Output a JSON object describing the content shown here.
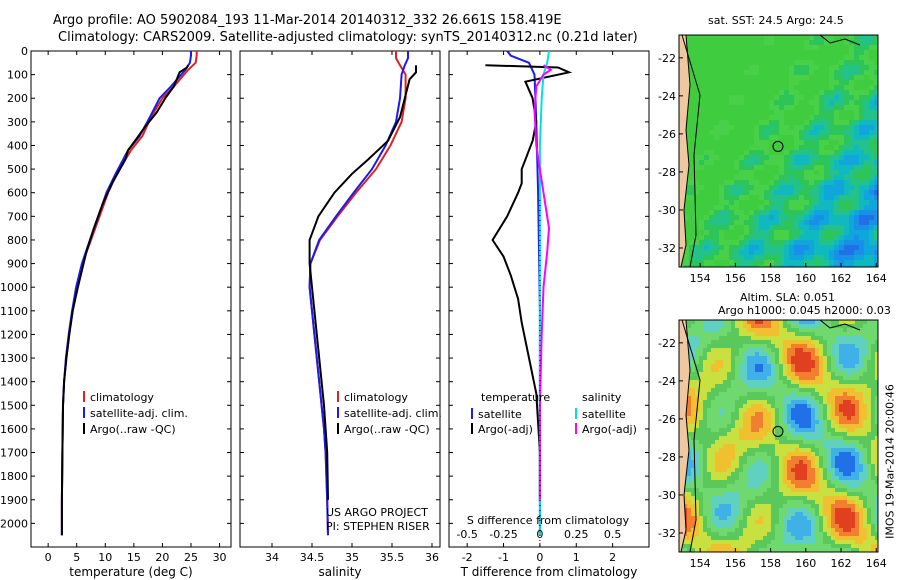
{
  "header": {
    "line1": "Argo profile: AO 5902084_193 11-Mar-2014 20140312_332 26.661S 158.419E",
    "line2": "Climatology: CARS2009. Satellite-adjusted climatology: synTS_20140312.nc (0.21d later)"
  },
  "colors": {
    "clim": "#e02020",
    "sat": "#1b1bf0",
    "argo": "#000000",
    "sal_sat": "#00e0e0",
    "sal_argo": "#ff00ff"
  },
  "chart_data": [
    {
      "type": "line",
      "id": "temperature-profile",
      "xlabel": "temperature (deg C)",
      "ylabel": "",
      "xlim": [
        -3,
        32
      ],
      "ylim": [
        2100,
        0
      ],
      "xticks": [
        0,
        5,
        10,
        15,
        20,
        25,
        30
      ],
      "yticks": [
        0,
        100,
        200,
        300,
        400,
        500,
        600,
        700,
        800,
        900,
        1000,
        1100,
        1200,
        1300,
        1400,
        1500,
        1600,
        1700,
        1800,
        1900,
        2000
      ],
      "series": [
        {
          "name": "climatology",
          "color": "#e02020",
          "x": [
            26,
            26,
            25.8,
            24.5,
            22,
            20,
            18,
            16.5,
            14.5,
            12,
            10.5,
            9,
            7.5,
            6,
            5,
            4.3,
            3.7,
            3.2,
            2.8,
            2.6,
            2.5,
            2.4,
            2.4
          ],
          "y": [
            0,
            20,
            50,
            80,
            150,
            200,
            280,
            360,
            420,
            520,
            600,
            700,
            800,
            900,
            1000,
            1100,
            1200,
            1300,
            1400,
            1500,
            1700,
            1900,
            2050
          ]
        },
        {
          "name": "satellite-adj. clim.",
          "color": "#1b1bf0",
          "x": [
            25,
            25,
            24.8,
            24,
            21.5,
            19.5,
            17.8,
            16,
            14,
            11.8,
            10.2,
            8.8,
            7.3,
            5.9,
            4.9,
            4.2,
            3.6,
            3.1,
            2.8,
            2.6,
            2.5,
            2.4,
            2.4
          ],
          "y": [
            0,
            20,
            50,
            80,
            150,
            200,
            280,
            360,
            420,
            520,
            600,
            700,
            800,
            900,
            1000,
            1100,
            1200,
            1300,
            1400,
            1500,
            1700,
            1900,
            2050
          ]
        },
        {
          "name": "Argo(..raw -QC)",
          "color": "#000000",
          "x": [
            24.5,
            24.3,
            23,
            22,
            20.5,
            19,
            17,
            15.2,
            14,
            13.5,
            11.2,
            9.5,
            8,
            6.7,
            5.2,
            4.3,
            3.7,
            3.2,
            2.8,
            2.6,
            2.5,
            2.4,
            2.4
          ],
          "y": [
            60,
            70,
            90,
            150,
            200,
            260,
            320,
            380,
            420,
            460,
            560,
            650,
            750,
            850,
            1000,
            1100,
            1200,
            1300,
            1400,
            1500,
            1700,
            1900,
            2050
          ]
        }
      ],
      "legend": [
        "climatology",
        "satellite-adj. clim.",
        "Argo(..raw -QC)"
      ]
    },
    {
      "type": "line",
      "id": "salinity-profile",
      "xlabel": "salinity",
      "xlim": [
        33.6,
        36.1
      ],
      "ylim": [
        2100,
        0
      ],
      "xticks": [
        34,
        34.5,
        35,
        35.5,
        36
      ],
      "series": [
        {
          "name": "climatology",
          "color": "#e02020",
          "x": [
            35.55,
            35.55,
            35.6,
            35.67,
            35.67,
            35.62,
            35.48,
            35.3,
            35.05,
            34.82,
            34.6,
            34.48,
            34.47,
            34.5,
            34.53,
            34.56,
            34.59,
            34.62,
            34.65,
            34.67,
            34.69,
            34.7
          ],
          "y": [
            0,
            30,
            60,
            100,
            200,
            300,
            400,
            500,
            600,
            700,
            800,
            900,
            1000,
            1100,
            1200,
            1300,
            1400,
            1500,
            1600,
            1700,
            1900,
            2050
          ]
        },
        {
          "name": "satellite-adj. clim.",
          "color": "#1b1bf0",
          "x": [
            35.7,
            35.7,
            35.66,
            35.62,
            35.6,
            35.55,
            35.42,
            35.25,
            35.02,
            34.8,
            34.59,
            34.48,
            34.47,
            34.5,
            34.53,
            34.56,
            34.59,
            34.62,
            34.65,
            34.67,
            34.69,
            34.7
          ],
          "y": [
            0,
            30,
            60,
            100,
            200,
            300,
            400,
            500,
            600,
            700,
            800,
            900,
            1000,
            1100,
            1200,
            1300,
            1400,
            1500,
            1600,
            1700,
            1900,
            2050
          ]
        },
        {
          "name": "Argo(..raw -QC)",
          "color": "#000000",
          "x": [
            35.8,
            35.8,
            35.72,
            35.66,
            35.6,
            35.45,
            35.2,
            35.0,
            34.78,
            34.58,
            34.47,
            34.47,
            34.5,
            34.53,
            34.56,
            34.59,
            34.62,
            34.65,
            34.67,
            34.69,
            34.7
          ],
          "y": [
            60,
            90,
            120,
            200,
            280,
            380,
            460,
            520,
            600,
            700,
            800,
            900,
            1000,
            1100,
            1200,
            1300,
            1400,
            1500,
            1600,
            1700,
            1900
          ]
        }
      ],
      "legend": [
        "climatology",
        "satellite-adj. clim.",
        "Argo(..raw -QC)"
      ],
      "annotations": [
        "US ARGO PROJECT",
        "PI: STEPHEN RISER"
      ]
    },
    {
      "type": "line",
      "id": "difference-profile",
      "xlabel": "T difference from climatology",
      "xlabel_top": "S difference from climatology",
      "xlim": [
        -2.5,
        3.0
      ],
      "ylim": [
        2100,
        0
      ],
      "xticks": [
        -2,
        -1,
        0,
        1,
        2
      ],
      "xticks_s": [
        -0.5,
        -0.25,
        0,
        0.25,
        0.5
      ],
      "series": [
        {
          "name": "temperature satellite",
          "color": "#1b1bf0",
          "x": [
            -0.9,
            -0.8,
            -0.3,
            -0.15,
            -0.1,
            -0.05,
            -0.02,
            0,
            0,
            0,
            0,
            0
          ],
          "y": [
            0,
            20,
            50,
            100,
            300,
            600,
            900,
            1100,
            1400,
            1700,
            1900,
            2050
          ]
        },
        {
          "name": "temperature Argo(-adj)",
          "color": "#000000",
          "x": [
            -1.5,
            0.5,
            0.8,
            0.2,
            -0.4,
            -0.2,
            -0.1,
            -0.2,
            -0.3,
            -0.4,
            -0.5,
            -0.5,
            -0.6,
            -0.9,
            -1.3,
            -1.0,
            -0.8,
            -0.6,
            -0.5,
            -0.3,
            -0.1,
            0,
            0
          ],
          "y": [
            60,
            70,
            90,
            110,
            130,
            200,
            300,
            380,
            420,
            460,
            500,
            560,
            600,
            700,
            800,
            870,
            950,
            1050,
            1150,
            1300,
            1450,
            1700,
            1900
          ]
        },
        {
          "name": "salinity satellite",
          "color": "#00e0e0",
          "x": [
            0.25,
            0.2,
            0.1,
            0.05,
            0,
            0,
            0,
            0,
            0,
            0,
            0
          ],
          "y": [
            0,
            50,
            100,
            200,
            400,
            600,
            900,
            1200,
            1500,
            1800,
            2050
          ]
        },
        {
          "name": "salinity Argo(-adj)",
          "color": "#ff00ff",
          "x": [
            0.1,
            0.3,
            0.1,
            -0.1,
            -0.15,
            -0.1,
            0,
            0.1,
            0.25,
            0.2,
            0.1,
            0.05,
            0,
            0
          ],
          "y": [
            60,
            80,
            100,
            150,
            250,
            400,
            500,
            600,
            750,
            850,
            1000,
            1200,
            1500,
            1900
          ]
        }
      ],
      "legend_titles": [
        "temperature",
        "salinity"
      ],
      "legend": [
        "satellite",
        "Argo(-adj)",
        "satellite",
        "Argo(-adj)"
      ]
    },
    {
      "type": "heatmap",
      "id": "sst-map",
      "title": "sat. SST: 24.5 Argo: 24.5",
      "xlim": [
        152.8,
        164.1
      ],
      "ylim": [
        -33,
        -20.8
      ],
      "xticks": [
        154,
        156,
        158,
        160,
        162,
        164
      ],
      "yticks": [
        -22,
        -24,
        -26,
        -28,
        -30,
        -32
      ],
      "marker": {
        "lon": 158.42,
        "lat": -26.66
      }
    },
    {
      "type": "heatmap",
      "id": "sla-map",
      "title_line1": "Altim. SLA: 0.051",
      "title_line2": "Argo h1000: 0.045 h2000: 0.03",
      "xlim": [
        152.8,
        164.1
      ],
      "ylim": [
        -33,
        -20.8
      ],
      "xticks": [
        154,
        156,
        158,
        160,
        162,
        164
      ],
      "yticks": [
        -22,
        -24,
        -26,
        -28,
        -30,
        -32
      ],
      "marker": {
        "lon": 158.42,
        "lat": -26.66
      }
    }
  ],
  "credit": "IMOS 19-Mar-2014 20:00:46"
}
